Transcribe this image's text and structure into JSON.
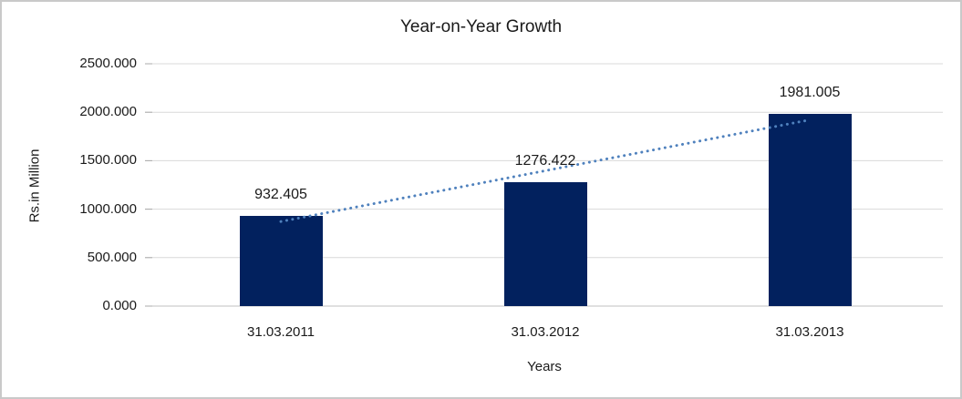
{
  "chart_data": {
    "type": "bar",
    "title": "Year-on-Year Growth",
    "xlabel": "Years",
    "ylabel": "Rs.in Million",
    "categories": [
      "31.03.2011",
      "31.03.2012",
      "31.03.2013"
    ],
    "values": [
      932.405,
      1276.422,
      1981.005
    ],
    "data_labels": [
      "932.405",
      "1276.422",
      "1981.005"
    ],
    "ylim": [
      0,
      2500
    ],
    "ytick_step": 500,
    "ytick_labels": [
      "0.000",
      "500.000",
      "1000.000",
      "1500.000",
      "2000.000",
      "2500.000"
    ],
    "grid": true,
    "legend_position": "none",
    "bar_color": "#02215e",
    "trendline": {
      "type": "linear",
      "style": "dotted",
      "color": "#4f81bd"
    },
    "gridline_color": "#d9d9d9",
    "axis_line_color": "#c0c0c0",
    "tick_mark_color": "#ababab",
    "text_color": "#1a1a1a",
    "frame_border_color": "#c9c9c9"
  }
}
